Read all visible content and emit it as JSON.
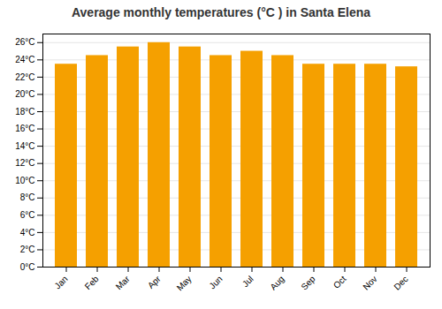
{
  "chart_data": {
    "type": "bar",
    "title": "Average monthly temperatures (°C ) in Santa Elena",
    "categories": [
      "Jan",
      "Feb",
      "Mar",
      "Apr",
      "May",
      "Jun",
      "Jul",
      "Aug",
      "Sep",
      "Oct",
      "Nov",
      "Dec"
    ],
    "values": [
      23.5,
      24.5,
      25.5,
      26.0,
      25.5,
      24.5,
      25.0,
      24.5,
      23.5,
      23.5,
      23.5,
      23.2
    ],
    "color": "#F5A000",
    "ylim": [
      0,
      27
    ],
    "yticks": [
      {
        "value": 0,
        "label": "0°C"
      },
      {
        "value": 2,
        "label": "2°C"
      },
      {
        "value": 4,
        "label": "4°C"
      },
      {
        "value": 6,
        "label": "6°C"
      },
      {
        "value": 8,
        "label": "8°C"
      },
      {
        "value": 10,
        "label": "10°C"
      },
      {
        "value": 12,
        "label": "12°C"
      },
      {
        "value": 14,
        "label": "14°C"
      },
      {
        "value": 16,
        "label": "16°C"
      },
      {
        "value": 18,
        "label": "18°C"
      },
      {
        "value": 20,
        "label": "20°C"
      },
      {
        "value": 22,
        "label": "22°C"
      },
      {
        "value": 24,
        "label": "24°C"
      },
      {
        "value": 26,
        "label": "26°C"
      }
    ],
    "grid": true
  }
}
